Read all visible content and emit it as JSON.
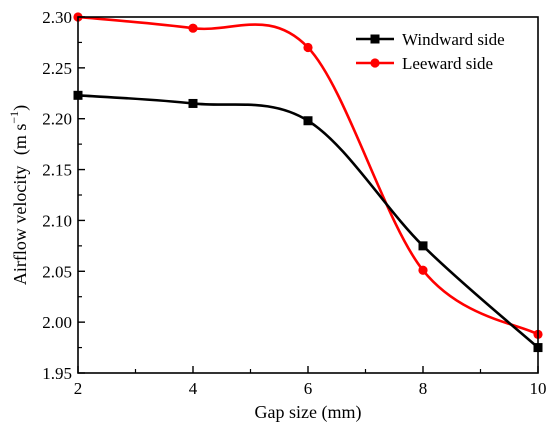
{
  "chart_data": {
    "type": "line",
    "title": "",
    "xlabel": "Gap size (mm)",
    "ylabel": "Airflow velocity",
    "yunit_main": "(m s",
    "yunit_exp": "−1",
    "yunit_close": ")",
    "x": [
      2,
      4,
      6,
      8,
      10
    ],
    "xlim": [
      2,
      10
    ],
    "ylim": [
      1.95,
      2.3
    ],
    "xticks": [
      2,
      4,
      6,
      8,
      10
    ],
    "xtick_labels": [
      "2",
      "4",
      "6",
      "8",
      "10"
    ],
    "yticks": [
      1.95,
      2.0,
      2.05,
      2.1,
      2.15,
      2.2,
      2.25,
      2.3
    ],
    "ytick_labels": [
      "1.95",
      "2.00",
      "2.05",
      "2.10",
      "2.15",
      "2.20",
      "2.25",
      "2.30"
    ],
    "grid": false,
    "legend_position": "top-right",
    "series": [
      {
        "name": "Windward side",
        "color": "#000000",
        "marker": "square",
        "values": [
          2.223,
          2.215,
          2.198,
          2.075,
          1.975
        ]
      },
      {
        "name": "Leeward side",
        "color": "#ff0000",
        "marker": "circle",
        "values": [
          2.3,
          2.289,
          2.27,
          2.051,
          1.988
        ]
      }
    ]
  }
}
